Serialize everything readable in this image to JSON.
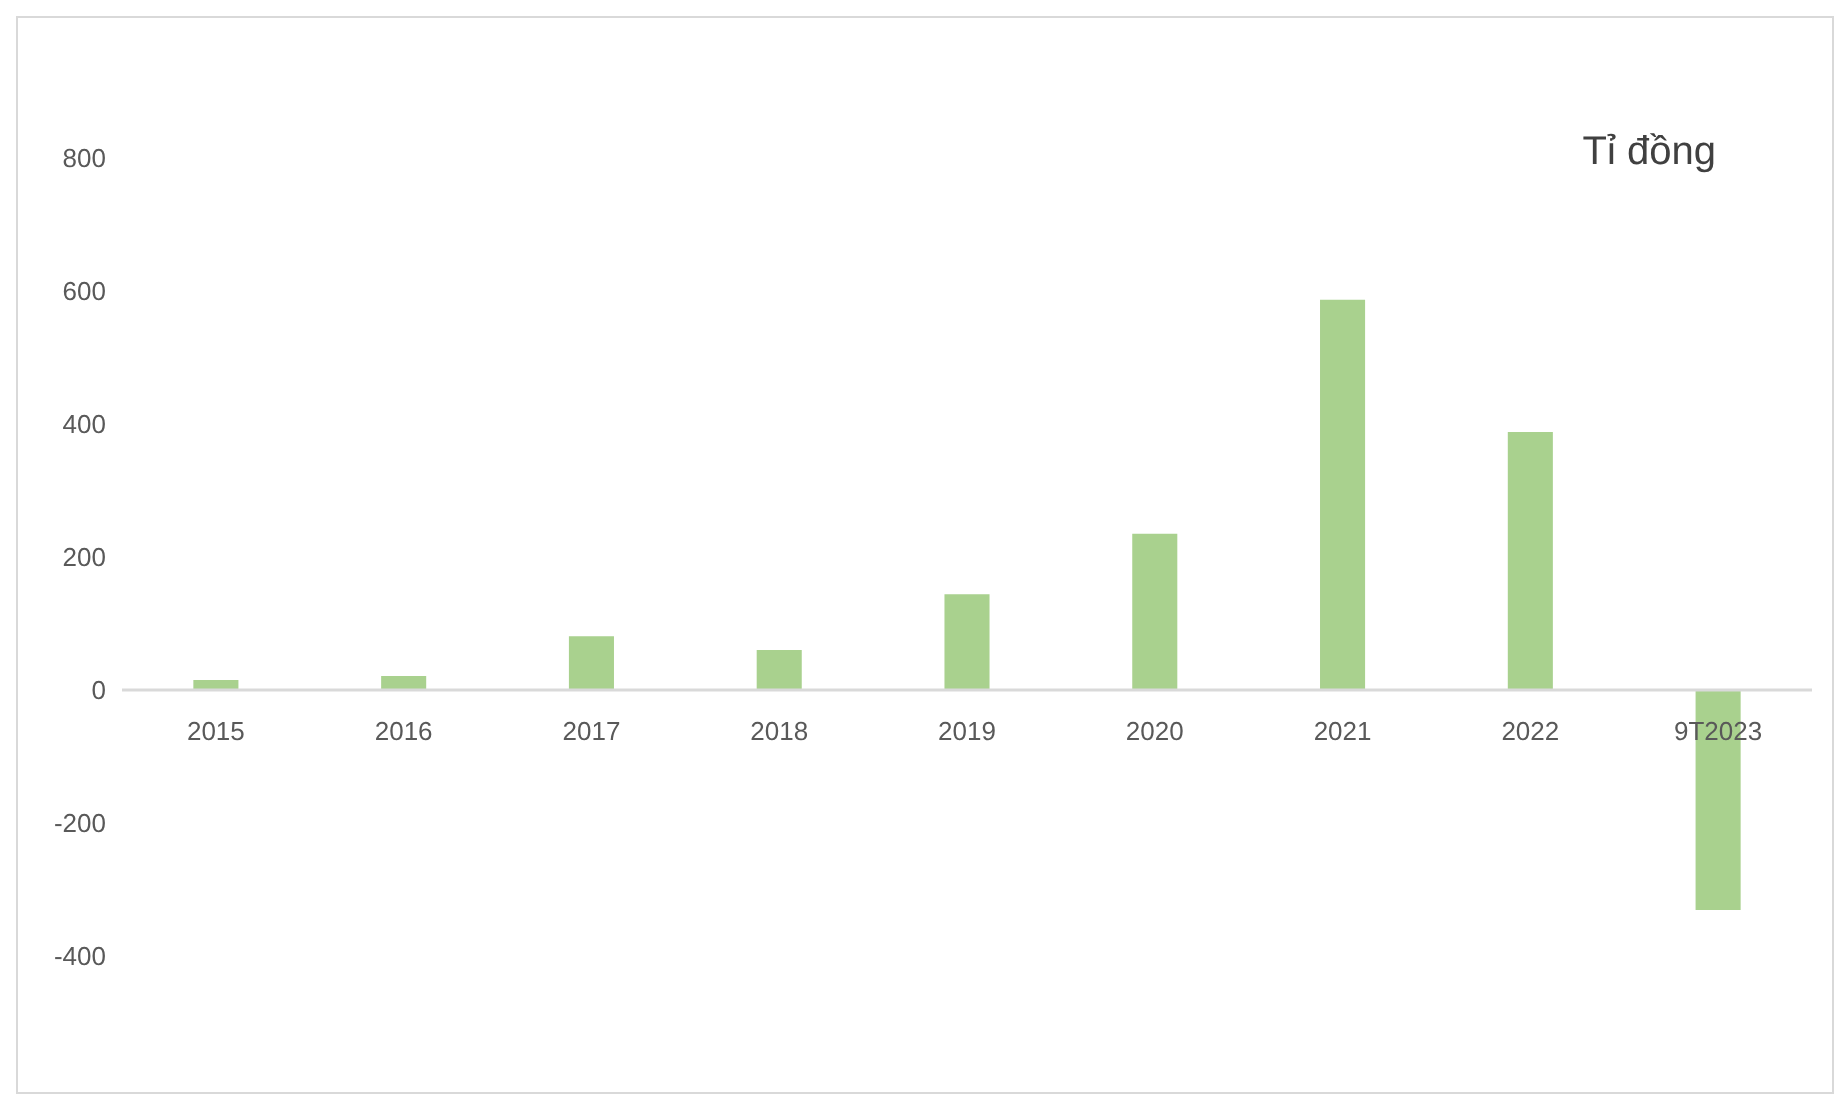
{
  "chart_data": {
    "type": "bar",
    "categories": [
      "2015",
      "2016",
      "2017",
      "2018",
      "2019",
      "2020",
      "2021",
      "2022",
      "9T2023"
    ],
    "values": [
      15,
      21,
      81,
      60,
      144,
      235,
      587,
      388,
      -331
    ],
    "color": "#a9d18e",
    "ylim": [
      -400,
      800
    ],
    "yticks": [
      -400,
      -200,
      0,
      200,
      400,
      600,
      800
    ],
    "annotations": [
      "Tỉ đồng"
    ]
  }
}
